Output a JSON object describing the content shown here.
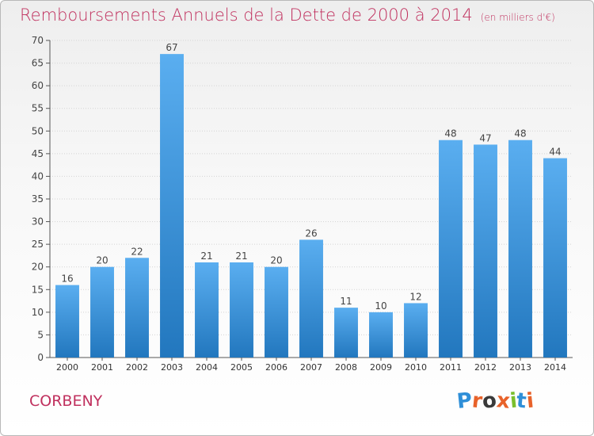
{
  "title": "Remboursements Annuels de la Dette de 2000 à 2014",
  "subtitle": "(en milliers d'€)",
  "commune": "CORBENY",
  "logo_text": "Proxiti",
  "colors": {
    "title": "#c0305e",
    "bar_top": "#5aaef0",
    "bar_bottom": "#2277be",
    "logo_letters": [
      "#2f8fd8",
      "#e8622a",
      "#3a3a3a",
      "#e8622a",
      "#7bbf2e",
      "#2f8fd8",
      "#e8622a"
    ]
  },
  "chart_data": {
    "type": "bar",
    "title": "Remboursements Annuels de la Dette de 2000 à 2014",
    "categories": [
      "2000",
      "2001",
      "2002",
      "2003",
      "2004",
      "2005",
      "2006",
      "2007",
      "2008",
      "2009",
      "2010",
      "2011",
      "2012",
      "2013",
      "2014"
    ],
    "values": [
      16,
      20,
      22,
      67,
      21,
      21,
      20,
      26,
      11,
      10,
      12,
      48,
      47,
      48,
      44
    ],
    "ylim": [
      0,
      70
    ],
    "yticks": [
      0,
      5,
      10,
      15,
      20,
      25,
      30,
      35,
      40,
      45,
      50,
      55,
      60,
      65,
      70
    ],
    "grid": true,
    "data_labels": true
  }
}
